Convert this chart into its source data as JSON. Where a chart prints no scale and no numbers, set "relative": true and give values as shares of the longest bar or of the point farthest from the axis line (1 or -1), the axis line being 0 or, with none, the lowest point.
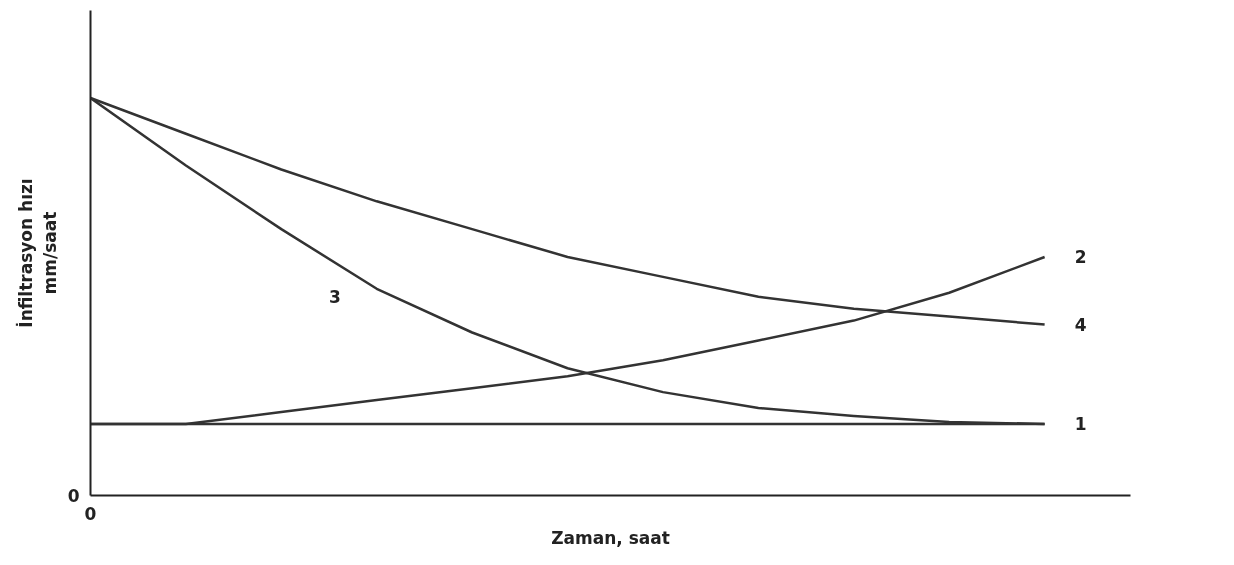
{
  "chart_data": {
    "type": "line",
    "relative": true,
    "xlabel": "Zaman, saat",
    "ylabel": "İnfiltrasyon hızı\nmm/saat",
    "categories": [
      null,
      null,
      null,
      null,
      null,
      null,
      null,
      null,
      null,
      null,
      null
    ],
    "marker": "none",
    "line_style": "solid",
    "legend": false,
    "grid": false,
    "annotations": [
      "0",
      "0"
    ],
    "series": [
      {
        "name": "1",
        "color": "#333333",
        "values": [
          0.18,
          0.18,
          0.18,
          0.18,
          0.18,
          0.18,
          0.18,
          0.18,
          0.18,
          0.18,
          0.18
        ]
      },
      {
        "name": "2",
        "color": "#333333",
        "values": [
          0.18,
          0.18,
          0.21,
          0.24,
          0.27,
          0.3,
          0.34,
          0.39,
          0.44,
          0.51,
          0.6
        ]
      },
      {
        "name": "3",
        "color": "#333333",
        "values": [
          1.0,
          0.83,
          0.67,
          0.52,
          0.41,
          0.32,
          0.26,
          0.22,
          0.2,
          0.185,
          0.18
        ]
      },
      {
        "name": "4",
        "color": "#333333",
        "values": [
          1.0,
          0.91,
          0.82,
          0.74,
          0.67,
          0.6,
          0.55,
          0.5,
          0.47,
          0.45,
          0.43
        ]
      }
    ]
  }
}
